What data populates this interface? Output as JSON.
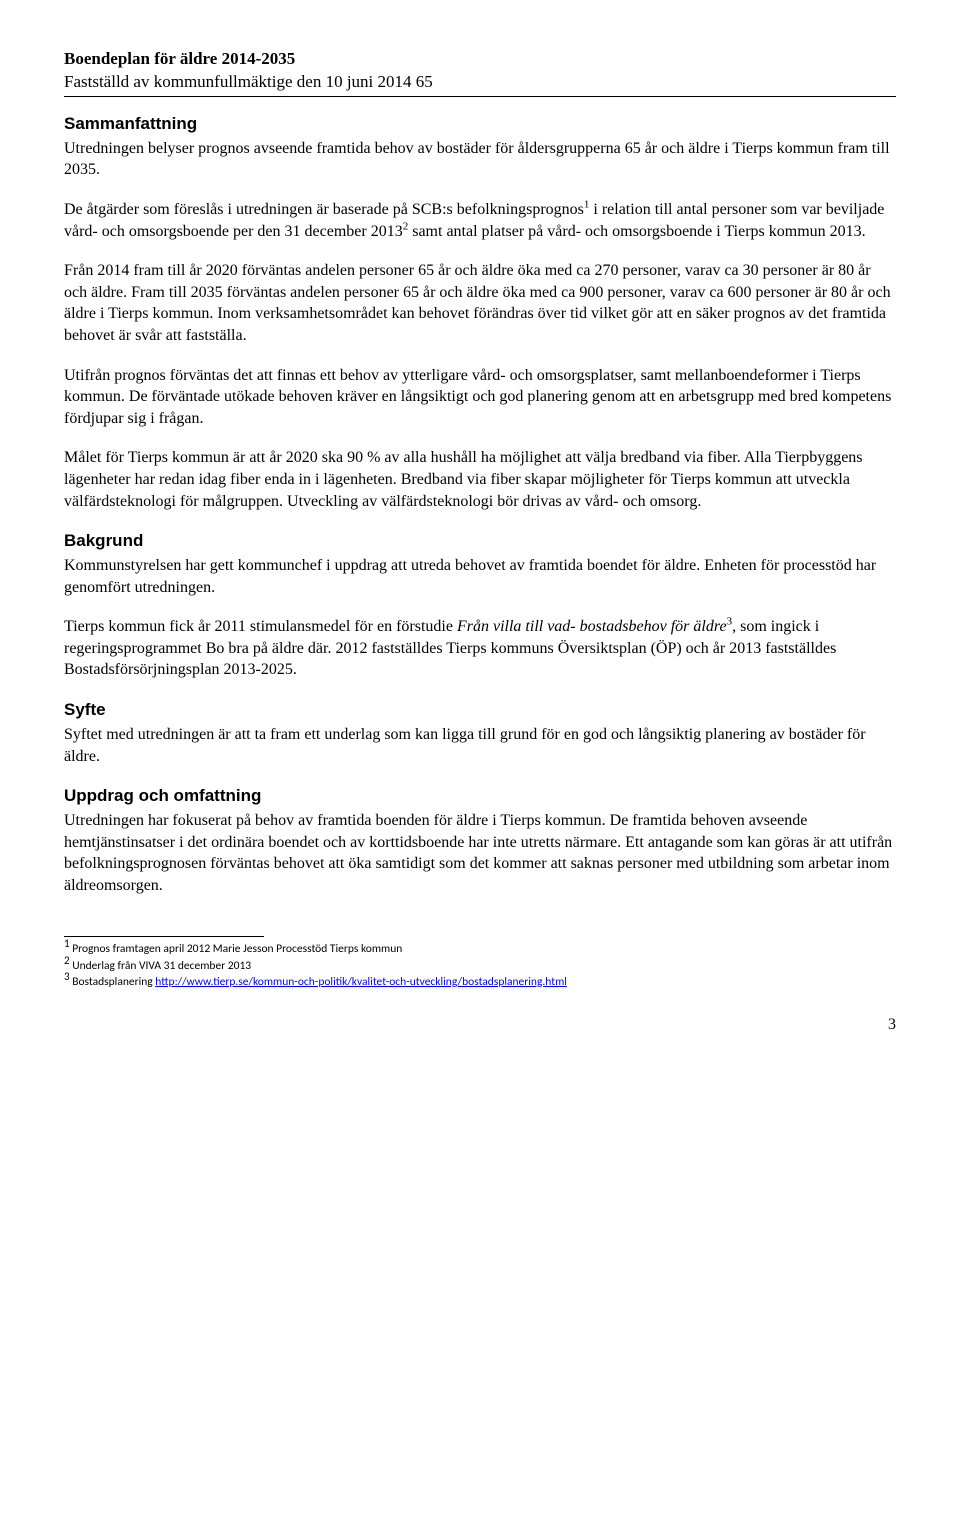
{
  "header": {
    "title": "Boendeplan för äldre 2014-2035",
    "subtitle": "Fastställd av kommunfullmäktige den 10 juni 2014 65"
  },
  "sections": {
    "sammanfattning": {
      "heading": "Sammanfattning",
      "p1": "Utredningen belyser prognos avseende framtida behov av bostäder för åldersgrupperna 65 år och äldre i Tierps kommun fram till 2035.",
      "p2a": "De åtgärder som föreslås i utredningen är baserade på SCB:s befolkningsprognos",
      "p2b": " i relation till antal personer som var beviljade vård- och omsorgsboende per den 31 december 2013",
      "p2c": " samt antal platser på vård- och omsorgsboende i Tierps kommun 2013.",
      "p3": "Från 2014 fram till år 2020 förväntas andelen personer 65 år och äldre öka med ca 270 personer, varav ca 30 personer är 80 år och äldre. Fram till 2035 förväntas andelen personer 65 år och äldre öka med ca 900 personer, varav ca 600 personer är 80 år och äldre i Tierps kommun. Inom verksamhetsområdet kan behovet förändras över tid vilket gör att en säker prognos av det framtida behovet är svår att fastställa.",
      "p4": "Utifrån prognos förväntas det att finnas ett behov av ytterligare vård- och omsorgsplatser, samt mellanboendeformer i Tierps kommun. De förväntade utökade behoven kräver en långsiktigt och god planering genom att en arbetsgrupp med bred kompetens fördjupar sig i frågan.",
      "p5": "Målet för Tierps kommun är att år 2020 ska 90 % av alla hushåll ha möjlighet att välja bredband via fiber. Alla Tierpbyggens lägenheter har redan idag fiber enda in i lägenheten. Bredband via fiber skapar möjligheter för Tierps kommun att utveckla välfärdsteknologi för målgruppen. Utveckling av välfärdsteknologi bör drivas av vård- och omsorg."
    },
    "bakgrund": {
      "heading": "Bakgrund",
      "p1": "Kommunstyrelsen har gett kommunchef i uppdrag att utreda behovet av framtida boendet för äldre. Enheten för processtöd har genomfört utredningen.",
      "p2a": "Tierps kommun fick år 2011 stimulansmedel för en förstudie ",
      "p2italic": "Från villa till vad- bostadsbehov för äldre",
      "p2b": ", som ingick i regeringsprogrammet Bo bra på äldre där. 2012 fastställdes Tierps kommuns Översiktsplan (ÖP) och år 2013 fastställdes Bostadsförsörjningsplan 2013-2025."
    },
    "syfte": {
      "heading": "Syfte",
      "p1": "Syftet med utredningen är att ta fram ett underlag som kan ligga till grund för en god och långsiktig planering av bostäder för äldre."
    },
    "uppdrag": {
      "heading": "Uppdrag och omfattning",
      "p1": "Utredningen har fokuserat på behov av framtida boenden för äldre i Tierps kommun. De framtida behoven avseende hemtjänstinsatser i det ordinära boendet och av korttidsboende har inte utretts närmare.  Ett antagande som kan göras är att utifrån befolkningsprognosen förväntas behovet att öka samtidigt som det kommer att saknas personer med utbildning som arbetar inom äldreomsorgen."
    }
  },
  "footnotes": {
    "f1": "Prognos framtagen april 2012 Marie Jesson Processtöd Tierps kommun",
    "f2": "Underlag från VIVA 31 december 2013",
    "f3_label": "Bostadsplanering ",
    "f3_link": "http://www.tierp.se/kommun-och-politik/kvalitet-och-utveckling/bostadsplanering.html"
  },
  "page_number": "3"
}
